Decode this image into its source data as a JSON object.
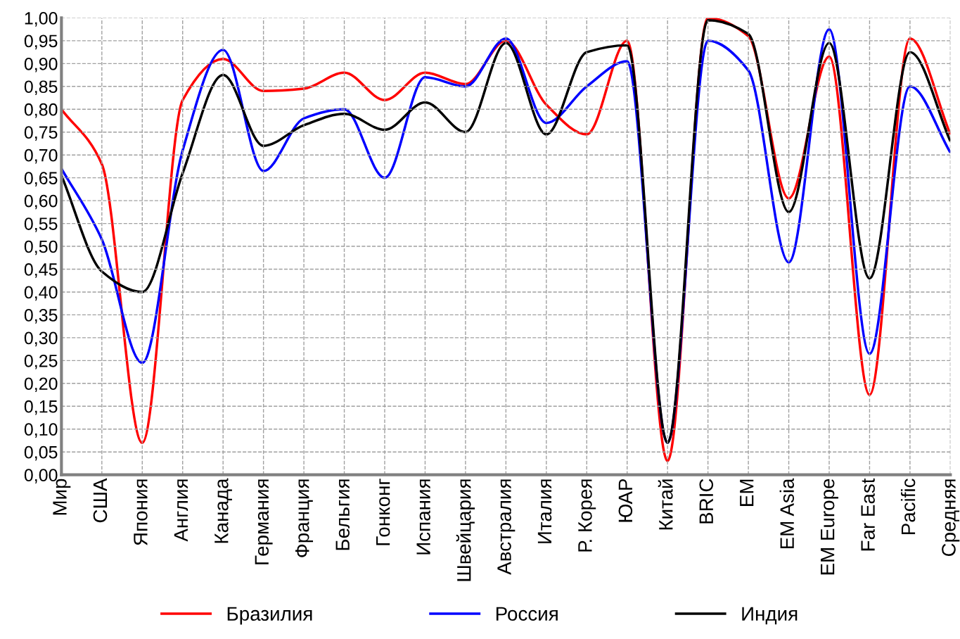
{
  "chart_data": {
    "type": "line",
    "categories": [
      "Мир",
      "США",
      "Япония",
      "Англия",
      "Канада",
      "Германия",
      "Франция",
      "Бельгия",
      "Гонконг",
      "Испания",
      "Швейцария",
      "Австралия",
      "Италия",
      "Р. Корея",
      "ЮАР",
      "Китай",
      "BRIC",
      "EM",
      "EM Asia",
      "EM Europe",
      "Far East",
      "Pacific",
      "Средняя"
    ],
    "series": [
      {
        "name": "Бразилия",
        "color": "#ff0000",
        "values": [
          0.8,
          0.68,
          0.07,
          0.82,
          0.91,
          0.84,
          0.845,
          0.88,
          0.82,
          0.88,
          0.855,
          0.95,
          0.81,
          0.745,
          0.95,
          0.03,
          1.0,
          0.96,
          0.605,
          0.915,
          0.175,
          0.955,
          0.745
        ]
      },
      {
        "name": "Россия",
        "color": "#0000ff",
        "values": [
          0.67,
          0.515,
          0.245,
          0.71,
          0.93,
          0.665,
          0.78,
          0.8,
          0.65,
          0.87,
          0.85,
          0.955,
          0.77,
          0.85,
          0.905,
          0.07,
          0.95,
          0.885,
          0.465,
          0.975,
          0.265,
          0.85,
          0.705
        ]
      },
      {
        "name": "Индия",
        "color": "#000000",
        "values": [
          0.655,
          0.445,
          0.4,
          0.66,
          0.875,
          0.72,
          0.765,
          0.79,
          0.755,
          0.815,
          0.75,
          0.945,
          0.745,
          0.925,
          0.94,
          0.07,
          0.995,
          0.965,
          0.575,
          0.945,
          0.43,
          0.925,
          0.73
        ]
      }
    ],
    "ylim": [
      0,
      1
    ],
    "yticks": [
      {
        "value": 0,
        "label": "0,00"
      },
      {
        "value": 0.05,
        "label": "0,05"
      },
      {
        "value": 0.1,
        "label": "0,10"
      },
      {
        "value": 0.15,
        "label": "0,15"
      },
      {
        "value": 0.2,
        "label": "0,20"
      },
      {
        "value": 0.25,
        "label": "0,25"
      },
      {
        "value": 0.3,
        "label": "0,30"
      },
      {
        "value": 0.35,
        "label": "0,35"
      },
      {
        "value": 0.4,
        "label": "0,40"
      },
      {
        "value": 0.45,
        "label": "0,45"
      },
      {
        "value": 0.5,
        "label": "0,50"
      },
      {
        "value": 0.55,
        "label": "0,55"
      },
      {
        "value": 0.6,
        "label": "0,60"
      },
      {
        "value": 0.65,
        "label": "0,65"
      },
      {
        "value": 0.7,
        "label": "0,70"
      },
      {
        "value": 0.75,
        "label": "0,75"
      },
      {
        "value": 0.8,
        "label": "0,80"
      },
      {
        "value": 0.85,
        "label": "0,85"
      },
      {
        "value": 0.9,
        "label": "0,90"
      },
      {
        "value": 0.95,
        "label": "0,95"
      },
      {
        "value": 1,
        "label": "1,00"
      }
    ],
    "grid": true,
    "legend": "bottom",
    "marker": "none",
    "line_style": "solid"
  }
}
